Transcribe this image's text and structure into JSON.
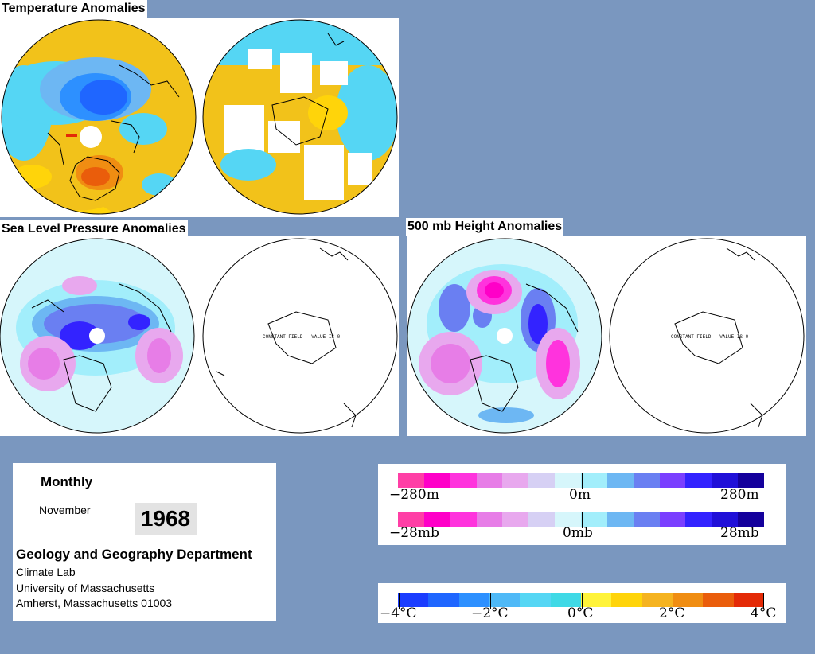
{
  "sections": {
    "temperature_title": "Temperature Anomalies",
    "slp_title": "Sea Level Pressure Anomalies",
    "height_title": "500 mb Height Anomalies",
    "constant_field_text": "CONSTANT FIELD - VALUE IS 0"
  },
  "info": {
    "period": "Monthly",
    "month": "November",
    "year": "1968",
    "department": "Geology and Geography Department",
    "lab": "Climate Lab",
    "university": "University of Massachusetts",
    "address": "Amherst, Massachusetts 01003"
  },
  "legends": {
    "height": {
      "min": "−280m",
      "mid": "0m",
      "max": "280m"
    },
    "pressure": {
      "min": "−28mb",
      "mid": "0mb",
      "max": "28mb"
    },
    "temperature": {
      "t1": "−4°C",
      "t2": "−2°C",
      "t3": "0°C",
      "t4": "2°C",
      "t5": "4°C"
    }
  },
  "colors": {
    "background": "#7a97bf",
    "anomaly_scale": [
      "#ff3fa6",
      "#ff00c8",
      "#ff33dd",
      "#e77de7",
      "#e8a8ee",
      "#d6d0f4",
      "#d6f6fb",
      "#a2eefb",
      "#6db7f3",
      "#6a7ff2",
      "#7a3fff",
      "#3323ff",
      "#2010d8",
      "#14009c"
    ],
    "temperature_scale": [
      "#1b3dff",
      "#1f66ff",
      "#2d90ff",
      "#4fb9f7",
      "#55d6f4",
      "#3fd9e6",
      "#fff33a",
      "#ffd40a",
      "#f5b320",
      "#f08d12",
      "#ea5d0b",
      "#e42a07"
    ]
  }
}
